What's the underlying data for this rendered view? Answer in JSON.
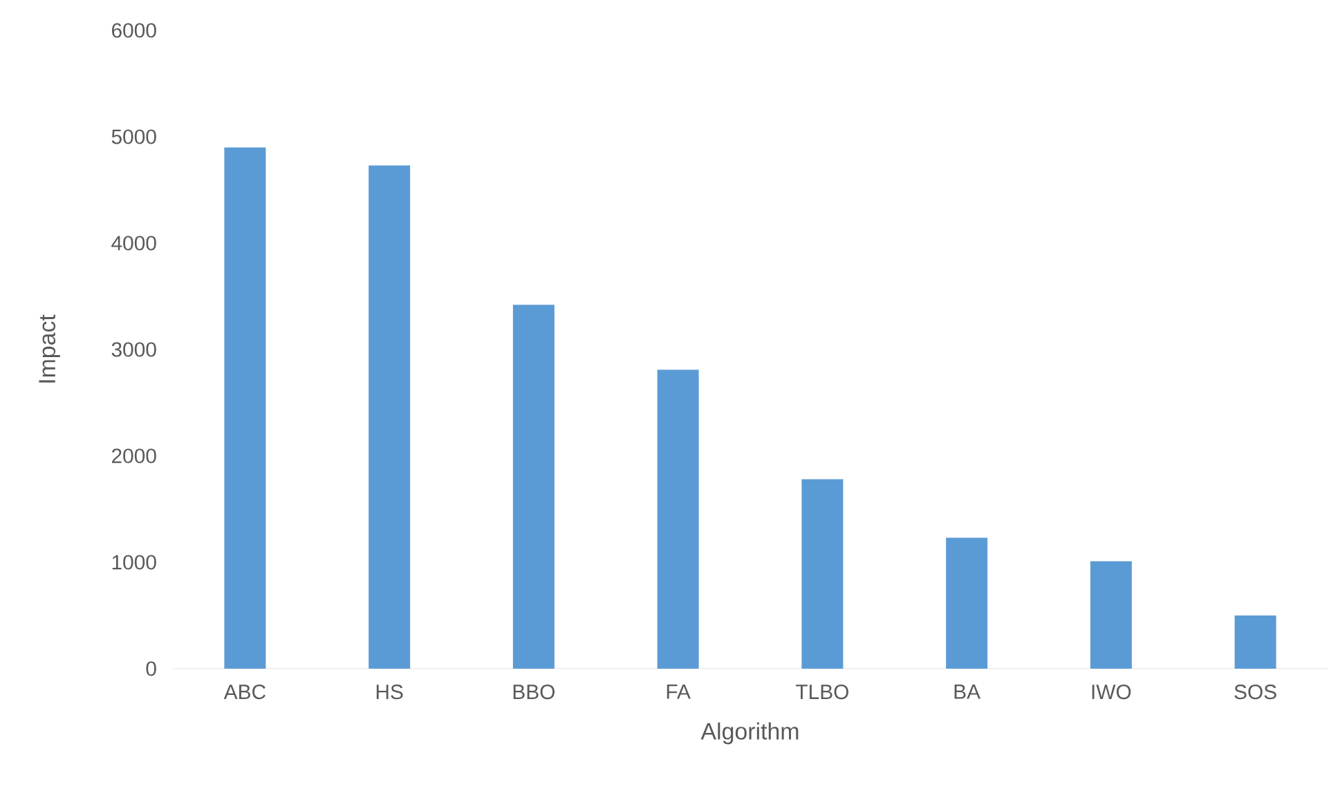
{
  "chart_data": {
    "type": "bar",
    "xlabel": "Algorithm",
    "ylabel": "Impact",
    "categories": [
      "ABC",
      "HS",
      "BBO",
      "FA",
      "TLBO",
      "BA",
      "IWO",
      "SOS"
    ],
    "values": [
      4900,
      4730,
      3420,
      2810,
      1780,
      1230,
      1010,
      500
    ],
    "color": "#5b9bd5",
    "ylim": [
      0,
      6000
    ],
    "yticks": [
      0,
      1000,
      2000,
      3000,
      4000,
      5000,
      6000
    ]
  }
}
